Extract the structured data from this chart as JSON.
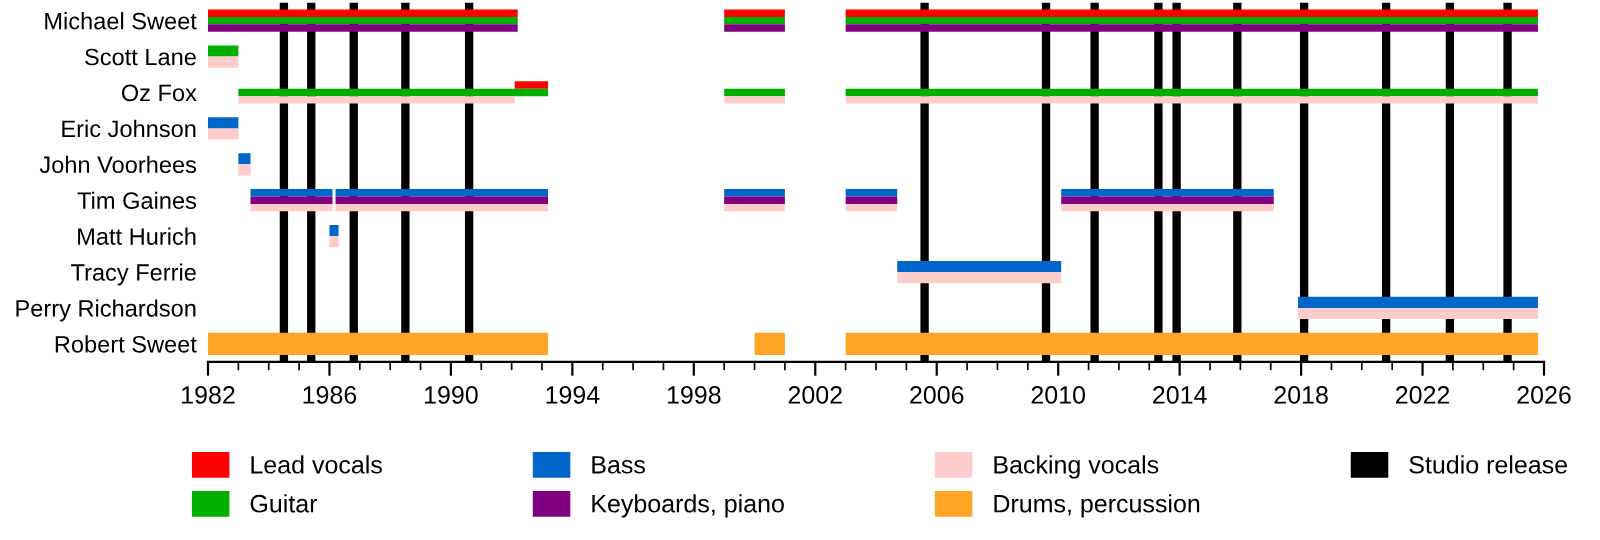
{
  "chart_data": {
    "type": "bar",
    "orientation": "horizontal",
    "legend": "bottom",
    "grid": false,
    "categories": [
      "Michael Sweet",
      "Scott Lane",
      "Oz Fox",
      "Eric Johnson",
      "John Voorhees",
      "Tim Gaines",
      "Matt Hurich",
      "Tracy Ferrie",
      "Perry Richardson",
      "Robert Sweet"
    ],
    "xlim": [
      1982,
      2026
    ],
    "xticks": [
      1982,
      1986,
      1990,
      1994,
      1998,
      2002,
      2006,
      2010,
      2014,
      2018,
      2022,
      2026
    ],
    "series": [
      {
        "name": "Lead vocals",
        "color": "#ff0000",
        "values": [
          10.2,
          null,
          1.1,
          null,
          null,
          null,
          null,
          null,
          null,
          null
        ],
        "base": [
          1982,
          null,
          1992.1,
          null,
          null,
          null,
          null,
          null,
          null,
          null
        ]
      },
      {
        "color": "#ff0000",
        "values": [
          2.0,
          null,
          null,
          null,
          null,
          null,
          null,
          null,
          null,
          null
        ],
        "base": [
          1999,
          null,
          null,
          null,
          null,
          null,
          null,
          null,
          null,
          null
        ]
      },
      {
        "color": "#ff0000",
        "values": [
          22.8,
          null,
          null,
          null,
          null,
          null,
          null,
          null,
          null,
          null
        ],
        "base": [
          2003,
          null,
          null,
          null,
          null,
          null,
          null,
          null,
          null,
          null
        ]
      },
      {
        "name": "Guitar",
        "color": "#00b000",
        "values": [
          10.2,
          1.0,
          10.2,
          null,
          null,
          null,
          null,
          null,
          null,
          null
        ],
        "base": [
          1982,
          1982,
          1983,
          null,
          null,
          null,
          null,
          null,
          null,
          null
        ]
      },
      {
        "color": "#00b000",
        "values": [
          2.0,
          null,
          2.0,
          null,
          null,
          null,
          null,
          null,
          null,
          null
        ],
        "base": [
          1999,
          null,
          1999,
          null,
          null,
          null,
          null,
          null,
          null,
          null
        ]
      },
      {
        "color": "#00b000",
        "values": [
          22.8,
          null,
          22.8,
          null,
          null,
          null,
          null,
          null,
          null,
          null
        ],
        "base": [
          2003,
          null,
          2003,
          null,
          null,
          null,
          null,
          null,
          null,
          null
        ]
      },
      {
        "name": "Bass",
        "color": "#0066cc",
        "values": [
          null,
          null,
          null,
          1.0,
          0.4,
          2.7,
          0.3,
          5.4,
          7.9,
          null
        ],
        "base": [
          null,
          null,
          null,
          1982,
          1983,
          1983.4,
          1986,
          2004.7,
          2017.9,
          null
        ]
      },
      {
        "color": "#0066cc",
        "values": [
          null,
          null,
          null,
          null,
          null,
          7.0,
          null,
          null,
          null,
          null
        ],
        "base": [
          null,
          null,
          null,
          null,
          null,
          1986.2,
          null,
          null,
          null,
          null
        ]
      },
      {
        "color": "#0066cc",
        "values": [
          null,
          null,
          null,
          null,
          null,
          2.0,
          null,
          null,
          null,
          null
        ],
        "base": [
          null,
          null,
          null,
          null,
          null,
          1999,
          null,
          null,
          null,
          null
        ]
      },
      {
        "color": "#0066cc",
        "values": [
          null,
          null,
          null,
          null,
          null,
          1.7,
          null,
          null,
          null,
          null
        ],
        "base": [
          null,
          null,
          null,
          null,
          null,
          2003,
          null,
          null,
          null,
          null
        ]
      },
      {
        "color": "#0066cc",
        "values": [
          null,
          null,
          null,
          null,
          null,
          7.0,
          null,
          null,
          null,
          null
        ],
        "base": [
          null,
          null,
          null,
          null,
          null,
          2010.1,
          null,
          null,
          null,
          null
        ]
      },
      {
        "name": "Keyboards, piano",
        "color": "#800080",
        "values": [
          10.2,
          null,
          null,
          null,
          null,
          2.7,
          null,
          null,
          null,
          null
        ],
        "base": [
          1982,
          null,
          null,
          null,
          null,
          1983.4,
          null,
          null,
          null,
          null
        ]
      },
      {
        "color": "#800080",
        "values": [
          2.0,
          null,
          null,
          null,
          null,
          7.0,
          null,
          null,
          null,
          null
        ],
        "base": [
          1999,
          null,
          null,
          null,
          null,
          1986.2,
          null,
          null,
          null,
          null
        ]
      },
      {
        "color": "#800080",
        "values": [
          22.8,
          null,
          null,
          null,
          null,
          2.0,
          null,
          null,
          null,
          null
        ],
        "base": [
          2003,
          null,
          null,
          null,
          null,
          1999,
          null,
          null,
          null,
          null
        ]
      },
      {
        "color": "#800080",
        "values": [
          null,
          null,
          null,
          null,
          null,
          1.7,
          null,
          null,
          null,
          null
        ],
        "base": [
          null,
          null,
          null,
          null,
          null,
          2003,
          null,
          null,
          null,
          null
        ]
      },
      {
        "color": "#800080",
        "values": [
          null,
          null,
          null,
          null,
          null,
          7.0,
          null,
          null,
          null,
          null
        ],
        "base": [
          null,
          null,
          null,
          null,
          null,
          2010.1,
          null,
          null,
          null,
          null
        ]
      },
      {
        "name": "Backing vocals",
        "color": "#ffcccc",
        "values": [
          null,
          1.0,
          9.1,
          1.0,
          0.4,
          2.7,
          0.3,
          5.4,
          7.9,
          null
        ],
        "base": [
          null,
          1982,
          1983,
          1982,
          1983,
          1983.4,
          1986,
          2004.7,
          2017.9,
          null
        ]
      },
      {
        "color": "#ffcccc",
        "values": [
          null,
          null,
          2.0,
          null,
          null,
          7.0,
          null,
          null,
          null,
          null
        ],
        "base": [
          null,
          null,
          1999,
          null,
          null,
          1986.2,
          null,
          null,
          null,
          null
        ]
      },
      {
        "color": "#ffcccc",
        "values": [
          null,
          null,
          22.8,
          null,
          null,
          2.0,
          null,
          null,
          null,
          null
        ],
        "base": [
          null,
          null,
          2003,
          null,
          null,
          1999,
          null,
          null,
          null,
          null
        ]
      },
      {
        "color": "#ffcccc",
        "values": [
          null,
          null,
          null,
          null,
          null,
          1.7,
          null,
          null,
          null,
          null
        ],
        "base": [
          null,
          null,
          null,
          null,
          null,
          2003,
          null,
          null,
          null,
          null
        ]
      },
      {
        "color": "#ffcccc",
        "values": [
          null,
          null,
          null,
          null,
          null,
          7.0,
          null,
          null,
          null,
          null
        ],
        "base": [
          null,
          null,
          null,
          null,
          null,
          2010.1,
          null,
          null,
          null,
          null
        ]
      },
      {
        "name": "Drums, percussion",
        "color": "#ffa526",
        "values": [
          null,
          null,
          null,
          null,
          null,
          null,
          null,
          null,
          null,
          11.2
        ],
        "base": [
          null,
          null,
          null,
          null,
          null,
          null,
          null,
          null,
          null,
          1982
        ]
      },
      {
        "color": "#ffa526",
        "values": [
          null,
          null,
          null,
          null,
          null,
          null,
          null,
          null,
          null,
          1.0
        ],
        "base": [
          null,
          null,
          null,
          null,
          null,
          null,
          null,
          null,
          null,
          2000
        ]
      },
      {
        "color": "#ffa526",
        "values": [
          null,
          null,
          null,
          null,
          null,
          null,
          null,
          null,
          null,
          22.8
        ],
        "base": [
          null,
          null,
          null,
          null,
          null,
          null,
          null,
          null,
          null,
          2003
        ]
      }
    ],
    "ref_lines": [
      {
        "axis": "x",
        "value": 1984.5,
        "label": "Studio release",
        "color": "#000000"
      },
      {
        "axis": "x",
        "value": 1985.4,
        "color": "#000000"
      },
      {
        "axis": "x",
        "value": 1986.8,
        "color": "#000000"
      },
      {
        "axis": "x",
        "value": 1988.5,
        "color": "#000000"
      },
      {
        "axis": "x",
        "value": 1990.6,
        "color": "#000000"
      },
      {
        "axis": "x",
        "value": 2005.6,
        "color": "#000000"
      },
      {
        "axis": "x",
        "value": 2009.6,
        "color": "#000000"
      },
      {
        "axis": "x",
        "value": 2011.2,
        "color": "#000000"
      },
      {
        "axis": "x",
        "value": 2013.3,
        "color": "#000000"
      },
      {
        "axis": "x",
        "value": 2013.9,
        "color": "#000000"
      },
      {
        "axis": "x",
        "value": 2015.9,
        "color": "#000000"
      },
      {
        "axis": "x",
        "value": 2018.1,
        "color": "#000000"
      },
      {
        "axis": "x",
        "value": 2020.8,
        "color": "#000000"
      },
      {
        "axis": "x",
        "value": 2022.9,
        "color": "#000000"
      },
      {
        "axis": "x",
        "value": 2024.8,
        "color": "#000000"
      }
    ]
  }
}
